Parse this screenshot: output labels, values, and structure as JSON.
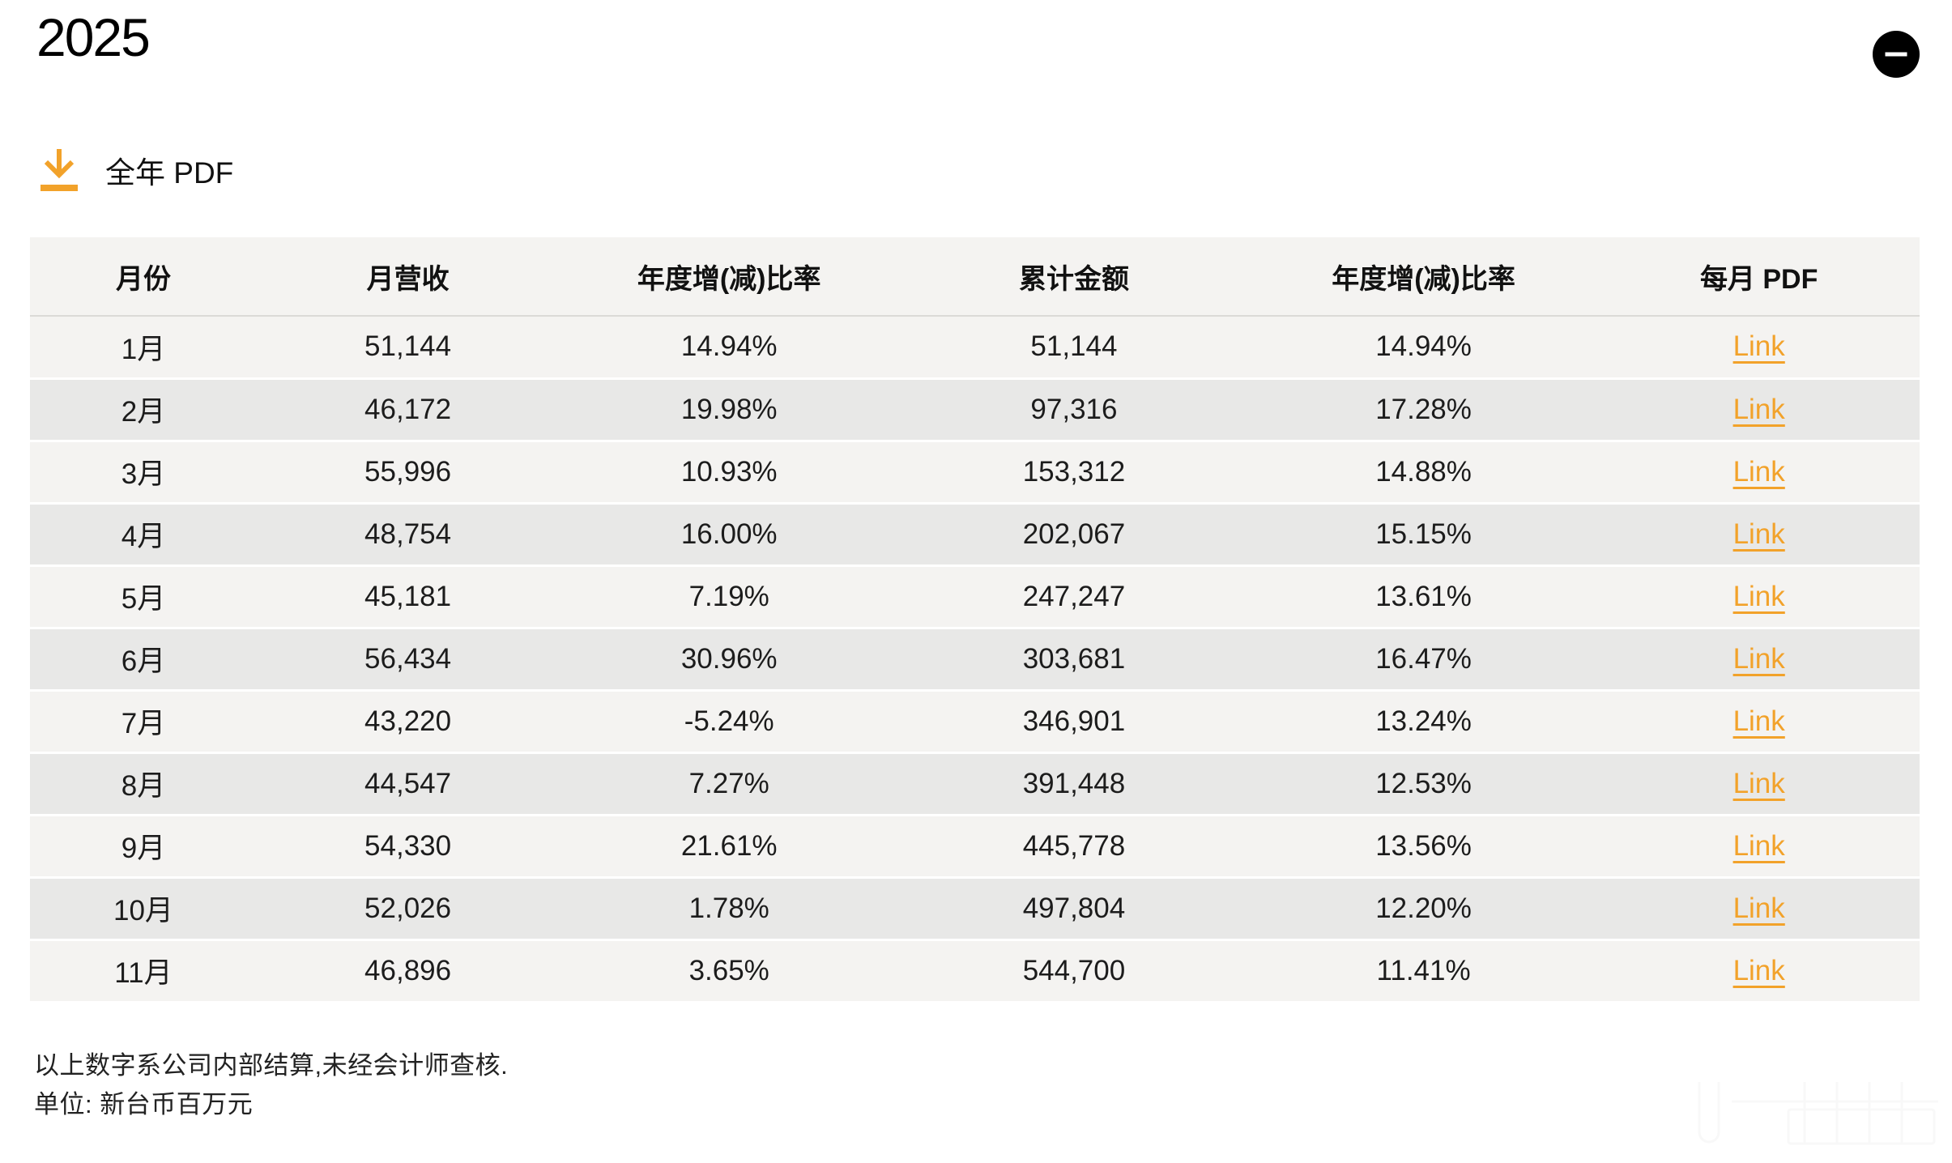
{
  "page": {
    "title": "2025",
    "collapse_button": "minus-icon"
  },
  "colors": {
    "accent_orange": "#F2A22A",
    "row_light": "#F4F3F1",
    "row_dark": "#E8E8E7",
    "button_black": "#000000"
  },
  "download": {
    "icon": "download-icon",
    "label": "全年 PDF"
  },
  "table": {
    "headers": [
      "月份",
      "月营收",
      "年度增(减)比率",
      "累计金额",
      "年度增(减)比率",
      "每月 PDF"
    ],
    "rows": [
      {
        "month": "1月",
        "monthly_revenue": "51,144",
        "monthly_yoy": "14.94%",
        "cumulative": "51,144",
        "cumulative_yoy": "14.94%",
        "link_label": "Link"
      },
      {
        "month": "2月",
        "monthly_revenue": "46,172",
        "monthly_yoy": "19.98%",
        "cumulative": "97,316",
        "cumulative_yoy": "17.28%",
        "link_label": "Link"
      },
      {
        "month": "3月",
        "monthly_revenue": "55,996",
        "monthly_yoy": "10.93%",
        "cumulative": "153,312",
        "cumulative_yoy": "14.88%",
        "link_label": "Link"
      },
      {
        "month": "4月",
        "monthly_revenue": "48,754",
        "monthly_yoy": "16.00%",
        "cumulative": "202,067",
        "cumulative_yoy": "15.15%",
        "link_label": "Link"
      },
      {
        "month": "5月",
        "monthly_revenue": "45,181",
        "monthly_yoy": "7.19%",
        "cumulative": "247,247",
        "cumulative_yoy": "13.61%",
        "link_label": "Link"
      },
      {
        "month": "6月",
        "monthly_revenue": "56,434",
        "monthly_yoy": "30.96%",
        "cumulative": "303,681",
        "cumulative_yoy": "16.47%",
        "link_label": "Link"
      },
      {
        "month": "7月",
        "monthly_revenue": "43,220",
        "monthly_yoy": "-5.24%",
        "cumulative": "346,901",
        "cumulative_yoy": "13.24%",
        "link_label": "Link"
      },
      {
        "month": "8月",
        "monthly_revenue": "44,547",
        "monthly_yoy": "7.27%",
        "cumulative": "391,448",
        "cumulative_yoy": "12.53%",
        "link_label": "Link"
      },
      {
        "month": "9月",
        "monthly_revenue": "54,330",
        "monthly_yoy": "21.61%",
        "cumulative": "445,778",
        "cumulative_yoy": "13.56%",
        "link_label": "Link"
      },
      {
        "month": "10月",
        "monthly_revenue": "52,026",
        "monthly_yoy": "1.78%",
        "cumulative": "497,804",
        "cumulative_yoy": "12.20%",
        "link_label": "Link"
      },
      {
        "month": "11月",
        "monthly_revenue": "46,896",
        "monthly_yoy": "3.65%",
        "cumulative": "544,700",
        "cumulative_yoy": "11.41%",
        "link_label": "Link"
      }
    ]
  },
  "footnotes": {
    "line1": "以上数字系公司内部结算,未经会计师查核.",
    "line2": "单位: 新台币百万元"
  }
}
